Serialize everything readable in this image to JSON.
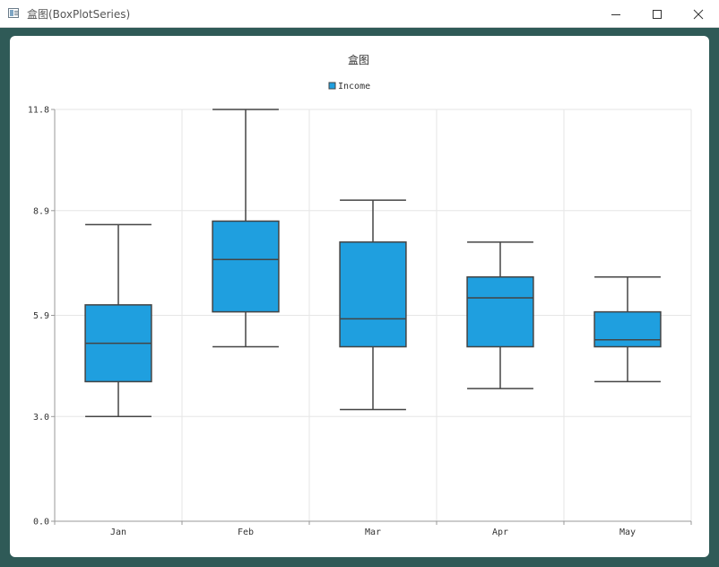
{
  "window": {
    "title": "盒图(BoxPlotSeries)",
    "icons": {
      "app": "chart-app-icon",
      "minimize": "minimize-icon",
      "maximize": "maximize-icon",
      "close": "close-icon"
    }
  },
  "colors": {
    "box_fill": "#1f9fdf",
    "box_stroke": "#444444",
    "grid": "#e6e6e6",
    "background": "#2f5a57"
  },
  "chart_data": {
    "type": "boxplot",
    "title": "盒图",
    "xlabel": "",
    "ylabel": "",
    "ylim": [
      0,
      11.8
    ],
    "yticks": [
      0,
      3,
      5.9,
      8.9,
      11.8
    ],
    "ytick_labels": [
      "0.0",
      "3.0",
      "5.9",
      "8.9",
      "11.8"
    ],
    "categories": [
      "Jan",
      "Feb",
      "Mar",
      "Apr",
      "May"
    ],
    "legend": {
      "position": "top-center",
      "entries": [
        "Income"
      ]
    },
    "grid": true,
    "series": [
      {
        "name": "Income",
        "boxes": [
          {
            "category": "Jan",
            "min": 3.0,
            "q1": 4.0,
            "median": 5.1,
            "q3": 6.2,
            "max": 8.5
          },
          {
            "category": "Feb",
            "min": 5.0,
            "q1": 6.0,
            "median": 7.5,
            "q3": 8.6,
            "max": 11.8
          },
          {
            "category": "Mar",
            "min": 3.2,
            "q1": 5.0,
            "median": 5.8,
            "q3": 8.0,
            "max": 9.2
          },
          {
            "category": "Apr",
            "min": 3.8,
            "q1": 5.0,
            "median": 6.4,
            "q3": 7.0,
            "max": 8.0
          },
          {
            "category": "May",
            "min": 4.0,
            "q1": 5.0,
            "median": 5.2,
            "q3": 6.0,
            "max": 7.0
          }
        ]
      }
    ]
  }
}
